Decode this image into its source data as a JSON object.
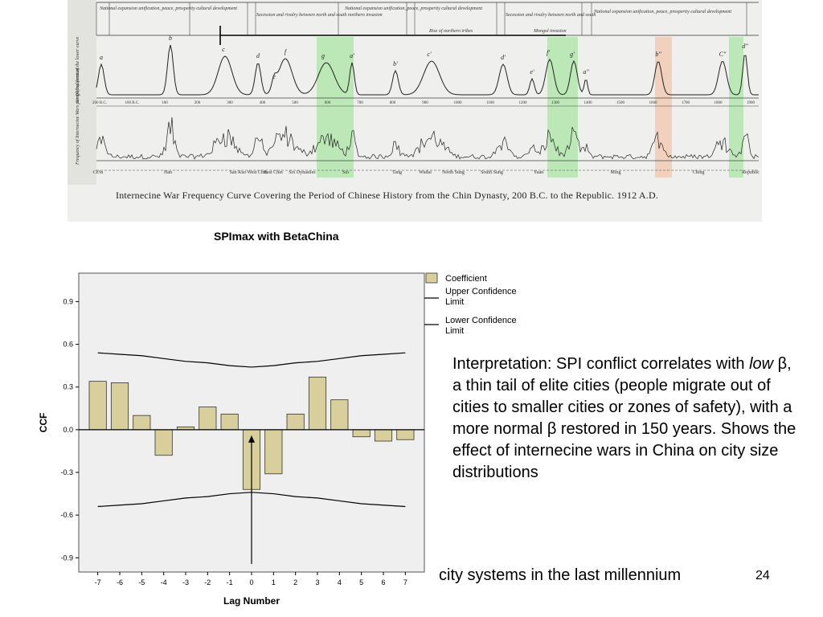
{
  "scan": {
    "header_phases": [
      "National expansion unification, peace, prosperity cultural development",
      "Secession and rivalry between north and south northern invasion",
      "National expansion unification, peace, prosperity cultural development",
      "Rise of northern tribes",
      "Secession and rivalry between north and south",
      "Mongol invasion",
      "National expansion unification, peace, prosperity cultural development"
    ],
    "upper_ylabel": "Simplified form of the lower curve",
    "lower_ylabel": "Frequency of Internecine Wars per Quinquennium",
    "peak_labels": [
      "a",
      "b",
      "c",
      "d",
      "e",
      "f",
      "g",
      "a'",
      "b'",
      "c'",
      "d'",
      "e'",
      "f'",
      "g'",
      "a\"",
      "b\"",
      "C\"",
      "d\""
    ],
    "year_ticks": [
      "200 B.C.",
      "100 B.C.",
      "100",
      "200",
      "300",
      "400",
      "500",
      "600",
      "700",
      "800",
      "900",
      "1000",
      "1100",
      "1200",
      "1300",
      "1400",
      "1500",
      "1600",
      "1700",
      "1800",
      "1900"
    ],
    "dynasties": [
      "Ch'in",
      "Han",
      "San Kuo",
      "West Chin",
      "East Chin",
      "Six Dynasties",
      "Sui",
      "Tang",
      "Wudai",
      "North Sung",
      "South Sung",
      "Yuan",
      "Ming",
      "Ching",
      "Republic"
    ],
    "caption": "Internecine War Frequency Curve Covering the Period of Chinese History from the Chin Dynasty, 200 B.C. to the Republic. 1912 A.D."
  },
  "chart_title": "SPImax with BetaChina",
  "chart_data": {
    "type": "bar",
    "categories": [
      "-7",
      "-6",
      "-5",
      "-4",
      "-3",
      "-2",
      "-1",
      "0",
      "1",
      "2",
      "3",
      "4",
      "5",
      "6",
      "7"
    ],
    "series": [
      {
        "name": "Coefficient",
        "values": [
          0.34,
          0.33,
          0.1,
          -0.18,
          0.02,
          0.16,
          0.11,
          -0.42,
          -0.31,
          0.11,
          0.37,
          0.21,
          -0.05,
          -0.08,
          -0.07
        ]
      },
      {
        "name": "Upper Confidence Limit",
        "values": [
          0.54,
          0.53,
          0.52,
          0.5,
          0.48,
          0.47,
          0.45,
          0.44,
          0.45,
          0.47,
          0.48,
          0.5,
          0.52,
          0.53,
          0.54
        ]
      },
      {
        "name": "Lower Confidence Limit",
        "values": [
          -0.54,
          -0.53,
          -0.52,
          -0.5,
          -0.48,
          -0.47,
          -0.45,
          -0.44,
          -0.45,
          -0.47,
          -0.48,
          -0.5,
          -0.52,
          -0.53,
          -0.54
        ]
      }
    ],
    "xlabel": "Lag Number",
    "ylabel": "CCF",
    "ylim": [
      -1.0,
      1.1
    ],
    "yticks": [
      "0.9",
      "0.6",
      "0.3",
      "0.0",
      "-0.3",
      "-0.6",
      "-0.9"
    ],
    "legend_position": "right",
    "grid": false,
    "bar_color": "#d8cf9c"
  },
  "interpretation": {
    "part1": "Interpretation: SPI conflict correlates with ",
    "emph": "low",
    "part2": " β, a thin tail of elite cities (people migrate out of cities to smaller cities or zones of safety), with a more normal β restored in 150 years. Shows the effect of internecine wars in China on city size distributions"
  },
  "footer": "city systems in the last millennium",
  "slide_number": "24"
}
